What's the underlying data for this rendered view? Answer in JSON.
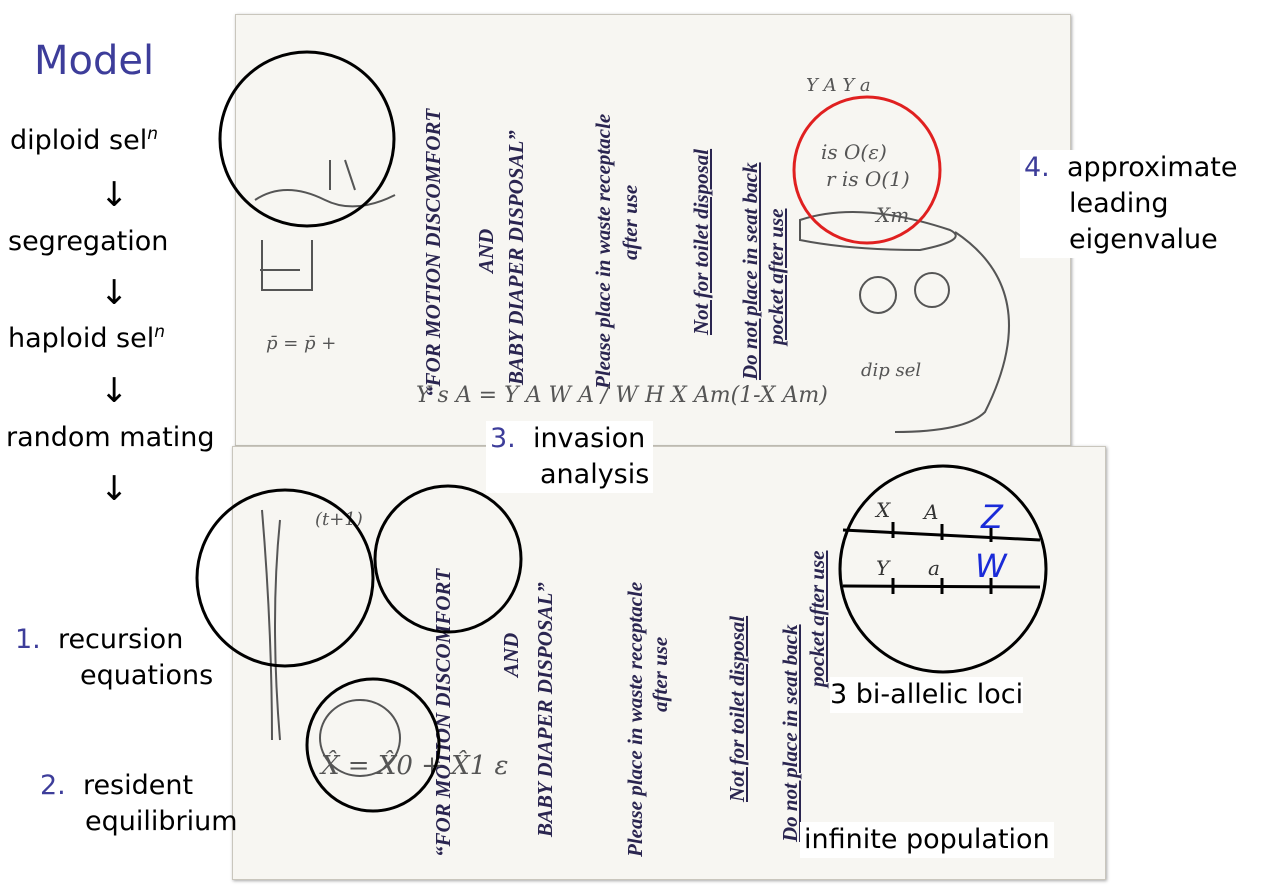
{
  "title": "Model",
  "flow": {
    "diploid": "diploid sel",
    "diploid_sup": "n",
    "segregation": "segregation",
    "haploid": "haploid sel",
    "haploid_sup": "n",
    "random": "random mating",
    "arrow": "↓"
  },
  "steps": {
    "s1_num": "1.",
    "s1_a": "recursion",
    "s1_b": "equations",
    "s2_num": "2.",
    "s2_a": "resident",
    "s2_b": "equilibrium",
    "s3_num": "3.",
    "s3_a": "invasion",
    "s3_b": "analysis",
    "s4_num": "4.",
    "s4_a": "approximate",
    "s4_b": "leading",
    "s4_c": "eigenvalue"
  },
  "loci": {
    "z": "Z",
    "w": "W",
    "x_allele": "X",
    "a_upper": "A",
    "y_allele": "Y",
    "a_lower": "a",
    "caption": "3 bi-allelic loci"
  },
  "population": "infinite population",
  "bag": {
    "line1": "“FOR MOTION DISCOMFORT",
    "line2": "AND",
    "line3": "BABY DIAPER DISPOSAL”",
    "line4": "Please place in waste receptacle",
    "line5": "after use",
    "line6": "Not for toilet disposal",
    "line7": "Do not place in seat back",
    "line8": "pocket after use"
  },
  "notes": {
    "top_eq": "Y s A = Y A W A / W H   X Am(1-X Am)",
    "eps1": "is O(ε)",
    "eps2": "r is O(1)",
    "xm": "Xm",
    "dipsel": "dip sel",
    "p_bar": "p̄ = p̄ +",
    "x_hat": "X̂ = X̂0 + X̂1 ε",
    "t1": "(t+1)",
    "ya": "Y A      Y a"
  },
  "colors": {
    "accent": "#3d3d9a",
    "highlight_circle": "#e02020",
    "locus_label": "#1a2bd8"
  }
}
